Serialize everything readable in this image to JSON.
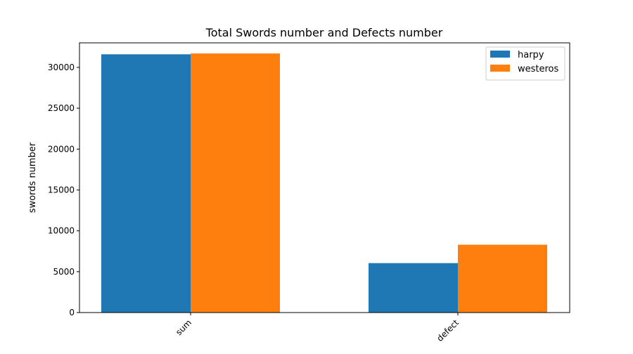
{
  "chart_data": {
    "type": "bar",
    "title": "Total Swords number and Defects number",
    "xlabel": "",
    "ylabel": "swords number",
    "categories": [
      "sum",
      "defect"
    ],
    "series": [
      {
        "name": "harpy",
        "values": [
          31600,
          6050
        ],
        "color": "#1f77b4"
      },
      {
        "name": "westeros",
        "values": [
          31700,
          8300
        ],
        "color": "#ff7f0e"
      }
    ],
    "ylim": [
      0,
      33000
    ],
    "yticks": [
      0,
      5000,
      10000,
      15000,
      20000,
      25000,
      30000
    ],
    "grid": false,
    "legend_position": "top-right",
    "xtick_rotation": 45
  }
}
